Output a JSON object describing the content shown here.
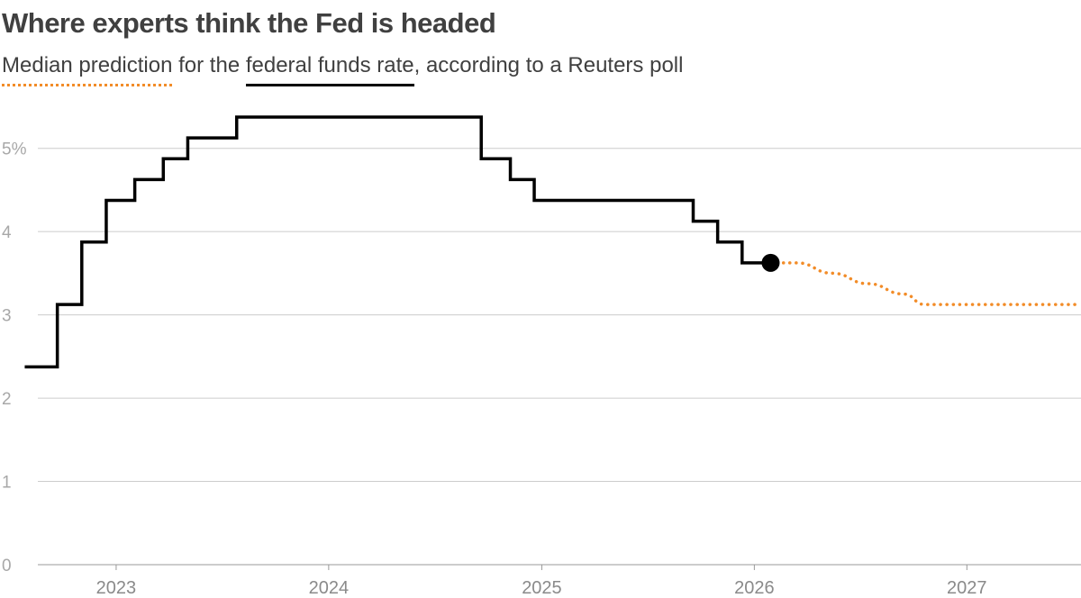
{
  "header": {
    "title": "Where experts think the Fed is headed",
    "subtitle_key_median": "Median prediction",
    "subtitle_middle": " for the ",
    "subtitle_key_actual": "federal funds rate",
    "subtitle_end": ", according to a Reuters poll"
  },
  "chart_data": {
    "type": "line",
    "title": "Where experts think the Fed is headed",
    "subtitle": "Median prediction for the federal funds rate, according to a Reuters poll",
    "xlabel": "",
    "ylabel": "",
    "ylim": [
      0,
      5.5
    ],
    "xlim": [
      "2022-07-01",
      "2027-07-16"
    ],
    "x_ticks": [
      {
        "date": "2023-01-01",
        "label": "2023"
      },
      {
        "date": "2024-01-01",
        "label": "2024"
      },
      {
        "date": "2025-01-01",
        "label": "2025"
      },
      {
        "date": "2026-01-01",
        "label": "2026"
      },
      {
        "date": "2027-01-01",
        "label": "2027"
      }
    ],
    "y_ticks": [
      {
        "value": 0,
        "label": "0"
      },
      {
        "value": 1,
        "label": "1"
      },
      {
        "value": 2,
        "label": "2"
      },
      {
        "value": 3,
        "label": "3"
      },
      {
        "value": 4,
        "label": "4"
      },
      {
        "value": 5,
        "label": "5%"
      }
    ],
    "grid": true,
    "series": [
      {
        "name": "federal funds rate",
        "style": "step",
        "color": "#000000",
        "points": [
          {
            "date": "2022-07-28",
            "value": 2.375
          },
          {
            "date": "2022-09-22",
            "value": 3.125
          },
          {
            "date": "2022-11-03",
            "value": 3.875
          },
          {
            "date": "2022-12-15",
            "value": 4.375
          },
          {
            "date": "2023-02-02",
            "value": 4.625
          },
          {
            "date": "2023-03-23",
            "value": 4.875
          },
          {
            "date": "2023-05-04",
            "value": 5.125
          },
          {
            "date": "2023-07-27",
            "value": 5.375
          },
          {
            "date": "2024-09-19",
            "value": 4.875
          },
          {
            "date": "2024-11-08",
            "value": 4.625
          },
          {
            "date": "2024-12-19",
            "value": 4.375
          },
          {
            "date": "2025-09-18",
            "value": 4.125
          },
          {
            "date": "2025-10-30",
            "value": 3.875
          },
          {
            "date": "2025-12-11",
            "value": 3.625
          },
          {
            "date": "2026-01-29",
            "value": 3.625
          }
        ]
      },
      {
        "name": "Median prediction",
        "style": "dotted",
        "color": "#f28c28",
        "points": [
          {
            "date": "2026-01-29",
            "value": 3.625
          },
          {
            "date": "2026-03-15",
            "value": 3.625
          },
          {
            "date": "2026-05-15",
            "value": 3.5
          },
          {
            "date": "2026-07-15",
            "value": 3.375
          },
          {
            "date": "2026-09-15",
            "value": 3.25
          },
          {
            "date": "2026-10-20",
            "value": 3.125
          },
          {
            "date": "2027-07-16",
            "value": 3.125
          }
        ]
      }
    ],
    "markers": [
      {
        "date": "2026-01-29",
        "value": 3.625,
        "color": "#000000"
      }
    ],
    "colors": {
      "text": "#404040",
      "axis_labels": "#a8a8a8",
      "grid": "#cccccc",
      "actual": "#000000",
      "prediction": "#f28c28"
    }
  }
}
